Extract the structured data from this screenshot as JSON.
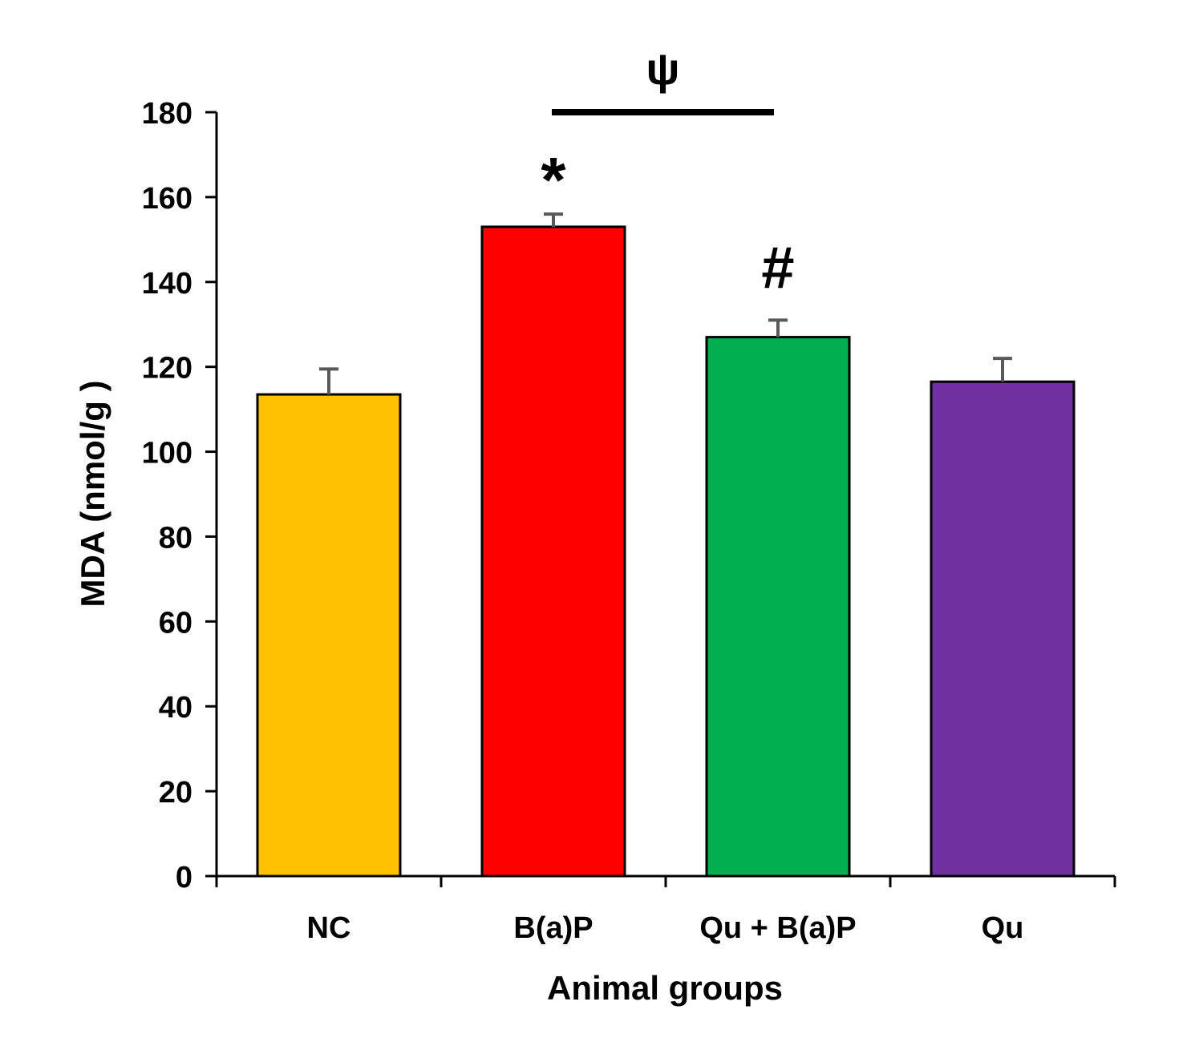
{
  "chart_data": {
    "type": "bar",
    "title": "",
    "xlabel": "Animal groups",
    "ylabel": "MDA (nmol/g )",
    "ylim": [
      0,
      180
    ],
    "yticks": [
      0,
      20,
      40,
      60,
      80,
      100,
      120,
      140,
      160,
      180
    ],
    "grid": false,
    "legend": "none",
    "categories": [
      "NC",
      "B(a)P",
      "Qu + B(a)P",
      "Qu"
    ],
    "values": [
      113.5,
      153,
      127,
      116.5
    ],
    "errors": [
      6,
      3,
      4,
      5.5
    ],
    "colors": [
      "#FFC000",
      "#FF0000",
      "#00B050",
      "#7030A0"
    ],
    "annotations": [
      {
        "text": "*",
        "category": "B(a)P",
        "meaning": "significance marker"
      },
      {
        "text": "#",
        "category": "Qu + B(a)P",
        "meaning": "significance marker"
      }
    ],
    "bracket": {
      "text": "ψ",
      "from": "B(a)P",
      "to": "Qu + B(a)P"
    }
  }
}
